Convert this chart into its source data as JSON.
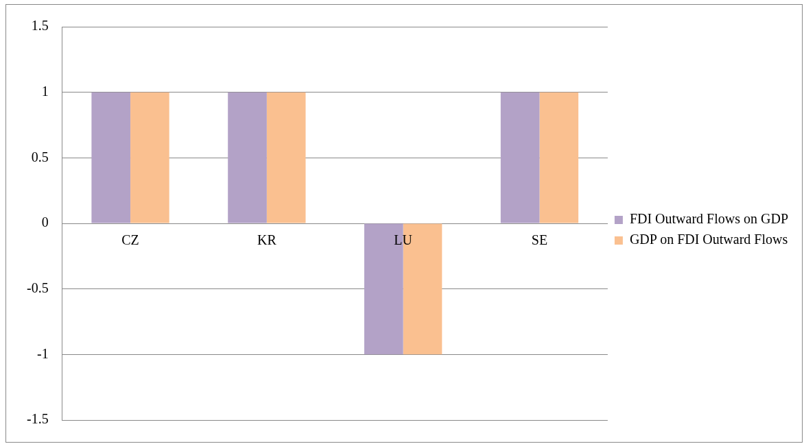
{
  "chart_data": {
    "type": "bar",
    "categories": [
      "CZ",
      "KR",
      "LU",
      "SE"
    ],
    "series": [
      {
        "name": "FDI Outward Flows on GDP",
        "color": "#b3a2c7",
        "values": [
          1,
          1,
          -1,
          1
        ]
      },
      {
        "name": "GDP on FDI Outward Flows",
        "color": "#fac090",
        "values": [
          1,
          1,
          -1,
          1
        ]
      }
    ],
    "ylim": [
      -1.5,
      1.5
    ],
    "yticks": [
      -1.5,
      -1,
      -0.5,
      0,
      0.5,
      1,
      1.5
    ],
    "grid": "y",
    "legend": "right"
  }
}
